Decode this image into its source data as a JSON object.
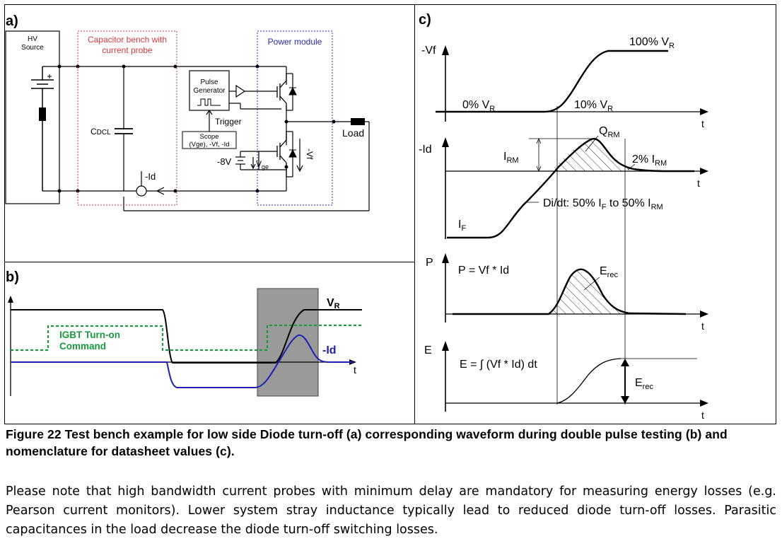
{
  "panel_a": {
    "label": "a)",
    "hv_source": [
      "HV",
      "Source"
    ],
    "capacitor_bench": [
      "Capacitor bench with",
      "current probe"
    ],
    "power_module": "Power module",
    "pulse_generator": [
      "Pulse",
      "Generator"
    ],
    "trigger": "Trigger",
    "scope": [
      "Scope",
      "(Vge), -Vf, -Id"
    ],
    "cdcl": "CDCL",
    "load": "Load",
    "neg_8v": "-8V",
    "vge": "Vge",
    "neg_id": "-Id",
    "neg_vf": "-Vf"
  },
  "panel_b": {
    "label": "b)",
    "vr": "VR",
    "igbt_cmd": [
      "IGBT Turn-on",
      "Command"
    ],
    "neg_id": "-Id",
    "t": "t",
    "colors": {
      "vr_trace": "#000000",
      "id_trace": "#1f1fb4",
      "cmd_trace": "#1a9a3a",
      "window": "#9a9a9a"
    }
  },
  "panel_c": {
    "label": "c)",
    "vf_axis": "-Vf",
    "vf_0": "0% V",
    "vf_10": "10% V",
    "vf_100": "100% V",
    "sub_r": "R",
    "id_axis": "-Id",
    "qrm_q": "Q",
    "qrm_sub": "RM",
    "irm_i": "I",
    "irm_sub": "RM",
    "pct2": "2% I",
    "pct2_sub": "RM",
    "didt_a": "Di/dt: 50% I",
    "didt_f": "F",
    "didt_b": " to 50% I",
    "didt_sub": "RM",
    "if_i": "I",
    "if_sub": "F",
    "p_axis": "P",
    "p_eq": "P = Vf * Id",
    "erec_e": "E",
    "erec_sub": "rec",
    "e_axis": "E",
    "e_eq": "E = ∫ (Vf * Id) dt",
    "t": "t"
  },
  "caption": "Figure 22 Test bench example for low side Diode turn-off (a) corresponding waveform during double pulse testing (b) and nomenclature for datasheet values (c).",
  "body_text": "Please note that high bandwidth current probes with minimum delay are mandatory for measuring energy losses (e.g. Pearson current monitors). Lower system stray inductance typically lead to reduced diode turn-off losses. Parasitic capacitances in the load decrease the diode turn-off switching losses."
}
